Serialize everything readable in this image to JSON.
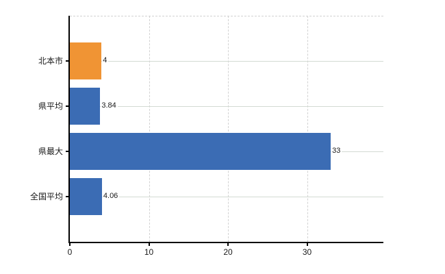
{
  "chart_data": {
    "type": "bar",
    "orientation": "horizontal",
    "title": "",
    "xlabel": "",
    "ylabel": "",
    "categories": [
      "北本市",
      "県平均",
      "県最大",
      "全国平均"
    ],
    "values": [
      4,
      3.84,
      33,
      4.06
    ],
    "value_labels": [
      "4",
      "3.84",
      "33",
      "4.06"
    ],
    "bar_colors": [
      "#F09434",
      "#3B6CB4",
      "#3B6CB4",
      "#3B6CB4"
    ],
    "xlim": [
      0,
      39.65
    ],
    "xticks": [
      0,
      10,
      20,
      30
    ],
    "xtick_labels": [
      "0",
      "10",
      "20",
      "30"
    ],
    "legend": "none",
    "grid": {
      "vertical_style": "dashed",
      "horizontal_style": "solid",
      "grid_on": true
    },
    "colors": {
      "background": "#ffffff",
      "axis": "#000000",
      "gridline_horizontal": "#d3dad3",
      "gridline_vertical": "#d2d2d2",
      "text": "#1a1a1a",
      "default_bar": "#3B6CB4",
      "highlight_bar": "#F09434"
    }
  }
}
